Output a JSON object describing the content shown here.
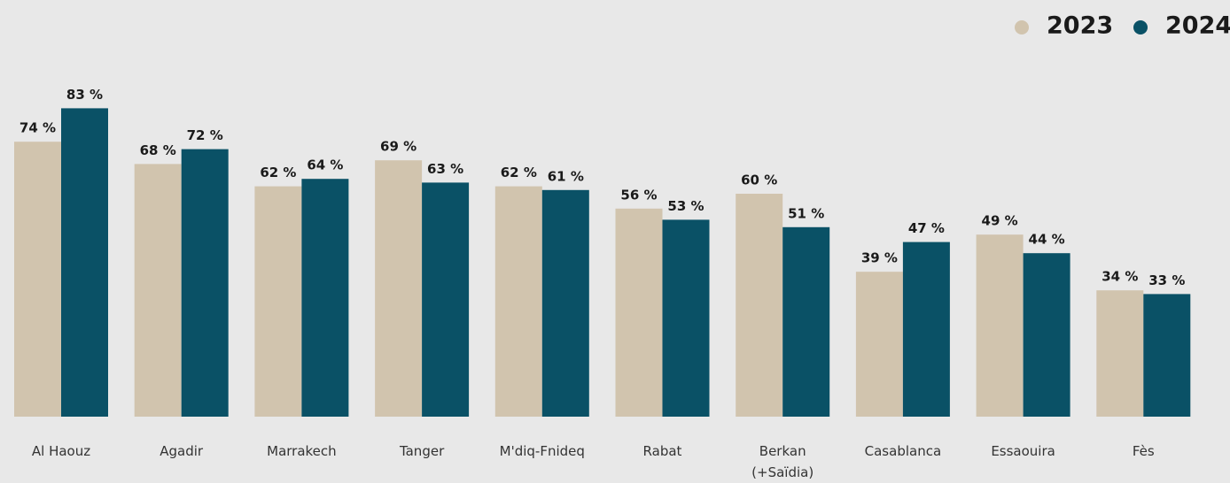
{
  "chart_data": {
    "type": "bar",
    "categories": [
      "Al Haouz",
      "Agadir",
      "Marrakech",
      "Tanger",
      "M'diq-Fnideq",
      "Rabat",
      "Berkan (+Saïdia)",
      "Casablanca",
      "Essaouira",
      "Fès"
    ],
    "series": [
      {
        "name": "2023",
        "color": "#d1c4ae",
        "values": [
          74,
          68,
          62,
          69,
          62,
          56,
          60,
          39,
          49,
          34
        ],
        "value_labels": [
          "74 %",
          "68 %",
          "62 %",
          "69 %",
          "62 %",
          "56 %",
          "60 %",
          "39 %",
          "49 %",
          "34 %"
        ]
      },
      {
        "name": "2024",
        "color": "#0a5166",
        "values": [
          83,
          72,
          64,
          63,
          61,
          53,
          51,
          47,
          44,
          33
        ],
        "value_labels": [
          "83 %",
          "72 %",
          "64 %",
          "63 %",
          "61 %",
          "53 %",
          "51 %",
          "47 %",
          "44 %",
          "33 %"
        ]
      }
    ],
    "legend": "top-right"
  }
}
